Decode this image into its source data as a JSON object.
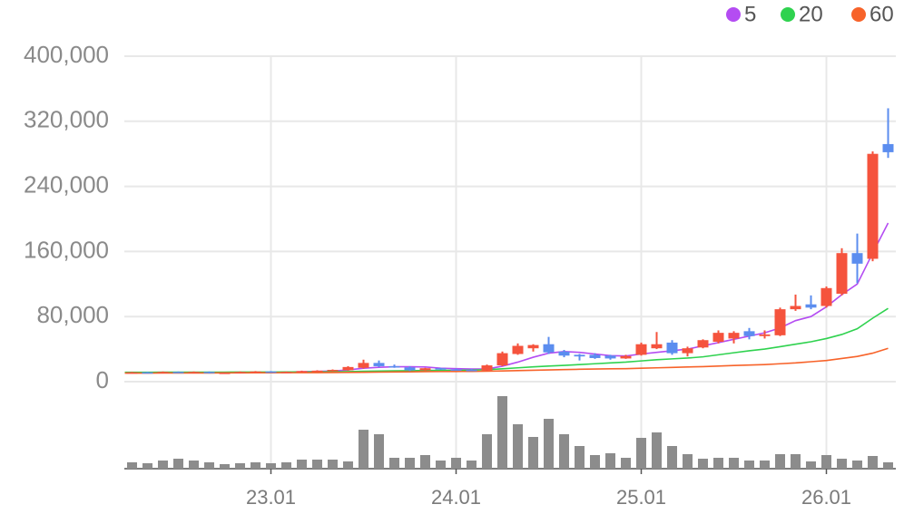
{
  "chart_data": {
    "type": "candlestick",
    "categories": [
      null,
      null,
      null,
      null,
      null,
      null,
      null,
      null,
      null,
      "23.01",
      null,
      null,
      null,
      null,
      null,
      null,
      null,
      null,
      null,
      null,
      null,
      "24.01",
      null,
      null,
      null,
      null,
      null,
      null,
      null,
      null,
      null,
      null,
      null,
      "25.01",
      null,
      null,
      null,
      null,
      null,
      null,
      null,
      null,
      null,
      null,
      null,
      "26.01",
      null,
      null,
      null,
      null
    ],
    "open": [
      10500,
      11500,
      11000,
      12000,
      11500,
      12000,
      10500,
      11000,
      12000,
      12500,
      11500,
      12000,
      13000,
      13500,
      14000,
      17000,
      23000,
      19000,
      17500,
      14000,
      16500,
      15000,
      14500,
      13500,
      20000,
      34000,
      41000,
      46000,
      37000,
      33000,
      33000,
      32000,
      28500,
      33000,
      41000,
      48000,
      35000,
      42000,
      49000,
      53000,
      62000,
      56000,
      57000,
      89000,
      95000,
      93000,
      108000,
      158000,
      151000,
      292000
    ],
    "high": [
      12000,
      12000,
      12500,
      12500,
      12500,
      12500,
      11500,
      12500,
      13000,
      13000,
      12500,
      13500,
      14000,
      15000,
      19000,
      27000,
      26000,
      21000,
      19000,
      17000,
      17000,
      16000,
      15500,
      21000,
      37000,
      47000,
      46000,
      55000,
      39000,
      34000,
      35000,
      33000,
      33000,
      48000,
      61000,
      51000,
      43000,
      52000,
      63000,
      62000,
      66000,
      63000,
      91000,
      107000,
      106000,
      117000,
      164000,
      182000,
      283000,
      336000
    ],
    "low": [
      10000,
      10500,
      10500,
      11000,
      10500,
      10000,
      9500,
      10500,
      11000,
      11000,
      10500,
      11500,
      12000,
      12500,
      13500,
      16000,
      18000,
      17000,
      13000,
      13500,
      14500,
      13500,
      13500,
      13000,
      19000,
      33000,
      37000,
      34000,
      30000,
      26000,
      28000,
      27000,
      28000,
      32000,
      40000,
      33000,
      31000,
      41000,
      47000,
      47000,
      52000,
      53000,
      56000,
      87000,
      89000,
      91000,
      106000,
      121000,
      148000,
      275000
    ],
    "close": [
      11500,
      11000,
      12000,
      11500,
      12000,
      10500,
      11000,
      12000,
      12500,
      11500,
      12000,
      13000,
      13500,
      14500,
      18000,
      23000,
      19000,
      17500,
      14000,
      16500,
      15000,
      14500,
      14000,
      20000,
      35000,
      44000,
      45000,
      36000,
      32000,
      31000,
      29000,
      28500,
      31500,
      46000,
      46000,
      35000,
      41000,
      51000,
      60000,
      60000,
      56000,
      58000,
      89000,
      93000,
      91000,
      115000,
      158000,
      145000,
      280000,
      282000
    ],
    "up_color": "#f5533d",
    "down_color": "#5b8def",
    "volume": [
      7,
      6,
      9,
      11,
      9,
      7,
      5,
      6,
      7,
      6,
      7,
      10,
      10,
      10,
      8,
      43,
      38,
      12,
      12,
      15,
      9,
      12,
      9,
      38,
      80,
      49,
      35,
      55,
      38,
      25,
      15,
      17,
      12,
      34,
      40,
      25,
      16,
      11,
      12,
      12,
      9,
      9,
      16,
      16,
      8,
      15,
      11,
      9,
      14,
      7
    ],
    "volume_color": "#8c8c8c",
    "series": [
      {
        "name": "5",
        "color": "#b44cf2",
        "values": [
          10800,
          11000,
          11200,
          11300,
          11400,
          11400,
          11300,
          11300,
          11400,
          11500,
          11800,
          12200,
          12600,
          13100,
          14400,
          16500,
          17600,
          18300,
          18300,
          18000,
          16500,
          16000,
          15500,
          15500,
          19000,
          24000,
          30000,
          35000,
          37000,
          36000,
          34000,
          32000,
          31500,
          34000,
          36000,
          38000,
          40000,
          44000,
          48000,
          52000,
          56000,
          60000,
          66000,
          75000,
          80000,
          92000,
          107000,
          120000,
          158000,
          195000
        ]
      },
      {
        "name": "20",
        "color": "#2fd24f",
        "values": [
          11500,
          11500,
          11600,
          11600,
          11700,
          11700,
          11700,
          11800,
          11800,
          11800,
          11900,
          11900,
          12000,
          12100,
          12300,
          12700,
          13000,
          13300,
          13500,
          13700,
          13900,
          14000,
          14200,
          14700,
          15800,
          17000,
          18200,
          19200,
          20000,
          21000,
          22000,
          23000,
          24000,
          25500,
          27000,
          28000,
          29000,
          30500,
          33000,
          35500,
          38000,
          40000,
          43000,
          46000,
          49000,
          53000,
          58000,
          65000,
          78000,
          90000
        ]
      },
      {
        "name": "60",
        "color": "#f7632a",
        "values": [
          10500,
          10500,
          10600,
          10600,
          10700,
          10700,
          10800,
          10800,
          10900,
          10900,
          11000,
          11000,
          11100,
          11200,
          11300,
          11500,
          11700,
          11900,
          12100,
          12300,
          12400,
          12500,
          12600,
          12800,
          13200,
          13600,
          14000,
          14400,
          14800,
          15200,
          15500,
          15800,
          16000,
          16500,
          17000,
          17500,
          18000,
          18500,
          19200,
          19800,
          20400,
          21000,
          22000,
          23000,
          24500,
          26000,
          28500,
          31000,
          35000,
          41000
        ]
      }
    ],
    "ylim": [
      0,
      400000
    ],
    "yticks": [
      0,
      {
        "value": 80000,
        "label": "80,000"
      },
      {
        "value": 160000,
        "label": "160,000"
      },
      {
        "value": 240000,
        "label": "240,000"
      },
      {
        "value": 320000,
        "label": "320,000"
      },
      {
        "value": 400000,
        "label": "400,000"
      }
    ],
    "grid": true
  }
}
